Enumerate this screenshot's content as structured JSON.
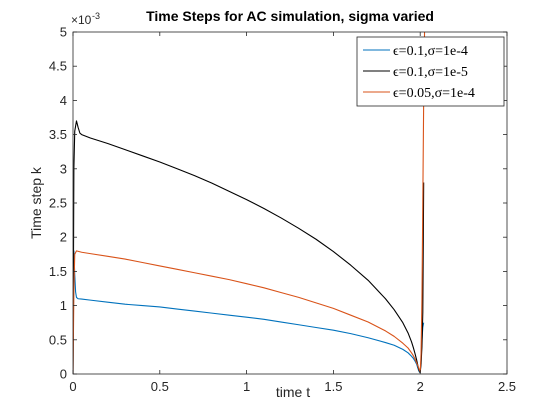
{
  "chart_data": {
    "type": "line",
    "title": "Time Steps for AC simulation, sigma varied",
    "xlabel": "time t",
    "ylabel": "Time step k",
    "xlim": [
      0,
      2.5
    ],
    "ylim": [
      0,
      5
    ],
    "y_exponent": "×10",
    "y_exponent_power": "-3",
    "xticks": [
      0,
      0.5,
      1,
      1.5,
      2,
      2.5
    ],
    "xtick_labels": [
      "0",
      "0.5",
      "1",
      "1.5",
      "2",
      "2.5"
    ],
    "yticks": [
      0,
      0.5,
      1,
      1.5,
      2,
      2.5,
      3,
      3.5,
      4,
      4.5,
      5
    ],
    "ytick_labels": [
      "0",
      "0.5",
      "1",
      "1.5",
      "2",
      "2.5",
      "3",
      "3.5",
      "4",
      "4.5",
      "5"
    ],
    "grid": false,
    "legend_position": "top-right",
    "series": [
      {
        "name": "ϵ=0.1,σ=1e-4",
        "color": "#0072BD",
        "x": [
          0,
          0.005,
          0.01,
          0.015,
          0.02,
          0.03,
          0.05,
          0.1,
          0.2,
          0.3,
          0.4,
          0.5,
          0.6,
          0.7,
          0.8,
          0.9,
          1.0,
          1.1,
          1.2,
          1.3,
          1.4,
          1.5,
          1.6,
          1.7,
          1.8,
          1.85,
          1.9,
          1.93,
          1.95,
          1.96,
          1.97,
          1.98,
          1.985,
          1.99,
          1.995,
          2.0,
          2.005,
          2.01,
          2.015,
          2.02
        ],
        "y": [
          0,
          1.8,
          1.45,
          1.2,
          1.12,
          1.1,
          1.095,
          1.08,
          1.05,
          1.02,
          1.0,
          0.98,
          0.95,
          0.92,
          0.89,
          0.86,
          0.83,
          0.8,
          0.76,
          0.72,
          0.68,
          0.64,
          0.59,
          0.53,
          0.46,
          0.42,
          0.36,
          0.31,
          0.26,
          0.23,
          0.19,
          0.14,
          0.1,
          0.06,
          0.03,
          0.02,
          0.2,
          0.5,
          0.68,
          0.75
        ]
      },
      {
        "name": "ϵ=0.1,σ=1e-5",
        "color": "#000000",
        "x": [
          0,
          0.005,
          0.01,
          0.02,
          0.03,
          0.04,
          0.05,
          0.1,
          0.2,
          0.3,
          0.4,
          0.5,
          0.6,
          0.7,
          0.8,
          0.9,
          1.0,
          1.1,
          1.2,
          1.3,
          1.4,
          1.5,
          1.6,
          1.7,
          1.8,
          1.85,
          1.9,
          1.93,
          1.95,
          1.96,
          1.97,
          1.98,
          1.985,
          1.99,
          1.995,
          2.0,
          2.005,
          2.01,
          2.015,
          2.02
        ],
        "y": [
          0,
          3.0,
          3.55,
          3.7,
          3.6,
          3.52,
          3.5,
          3.45,
          3.37,
          3.28,
          3.19,
          3.1,
          3.0,
          2.9,
          2.79,
          2.67,
          2.55,
          2.42,
          2.28,
          2.13,
          1.97,
          1.79,
          1.59,
          1.37,
          1.1,
          0.94,
          0.75,
          0.6,
          0.47,
          0.39,
          0.3,
          0.2,
          0.14,
          0.08,
          0.04,
          0.02,
          0.15,
          0.4,
          0.9,
          2.8
        ]
      },
      {
        "name": "ϵ=0.05,σ=1e-4",
        "color": "#D95319",
        "x": [
          0,
          0.005,
          0.01,
          0.02,
          0.05,
          0.1,
          0.2,
          0.3,
          0.4,
          0.5,
          0.6,
          0.7,
          0.8,
          0.9,
          1.0,
          1.1,
          1.2,
          1.3,
          1.4,
          1.5,
          1.6,
          1.7,
          1.8,
          1.85,
          1.9,
          1.93,
          1.95,
          1.96,
          1.97,
          1.98,
          1.99,
          1.995,
          2.0,
          2.005,
          2.01,
          2.015,
          2.02,
          2.025
        ],
        "y": [
          0,
          1.2,
          1.75,
          1.8,
          1.78,
          1.76,
          1.72,
          1.68,
          1.63,
          1.58,
          1.53,
          1.48,
          1.43,
          1.38,
          1.32,
          1.26,
          1.19,
          1.12,
          1.04,
          0.96,
          0.86,
          0.76,
          0.63,
          0.55,
          0.45,
          0.38,
          0.31,
          0.27,
          0.22,
          0.16,
          0.1,
          0.06,
          0.03,
          0.3,
          1.1,
          2.5,
          4.0,
          5.0
        ]
      }
    ]
  }
}
